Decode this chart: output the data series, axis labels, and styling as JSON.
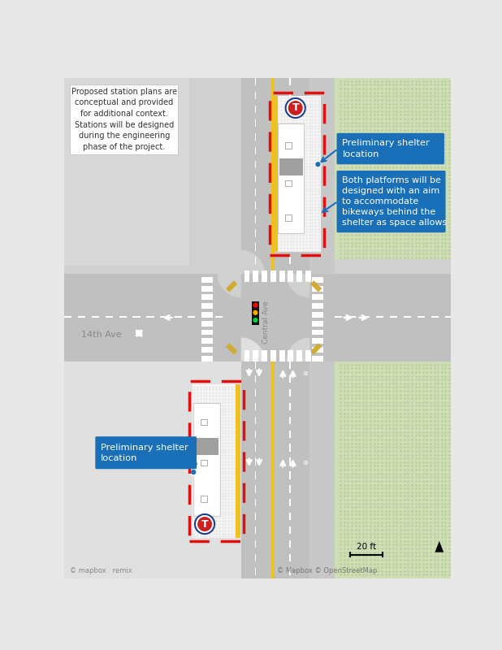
{
  "bg_color": "#e8e8e8",
  "sidewalk_light": "#d8d8d8",
  "road_color": "#c0c0c0",
  "road_dark": "#b0b0b0",
  "platform_fill": "#f5f5f5",
  "platform_dot": "#e2e2e2",
  "yellow_stripe": "#f0c020",
  "white": "#ffffff",
  "red_dash": "#e01010",
  "blue_callout": "#1a70b8",
  "green_area": "#cde8a0",
  "shelter_fill": "#e8e8e8",
  "shelter_gray": "#a8a8a8",
  "dark_gray": "#555555",
  "logo_blue": "#1a3a8c",
  "logo_red": "#cc2020",
  "curb_yellow": "#d4aa30",
  "note_text": "Proposed station plans are\nconceptual and provided\nfor additional context.\nStations will be designed\nduring the engineering\nphase of the project.",
  "callout1_text": "Preliminary shelter\nlocation",
  "callout2_text": "Both platforms will be\ndesigned with an aim\nto accommodate\nbikeways behind the\nshelter as space allows",
  "callout3_text": "Preliminary shelter\nlocation",
  "scale_text": "20 ft",
  "credit_text": "© Mapbox © OpenStreetMap",
  "mapbox_text": "© mapbox   remix"
}
